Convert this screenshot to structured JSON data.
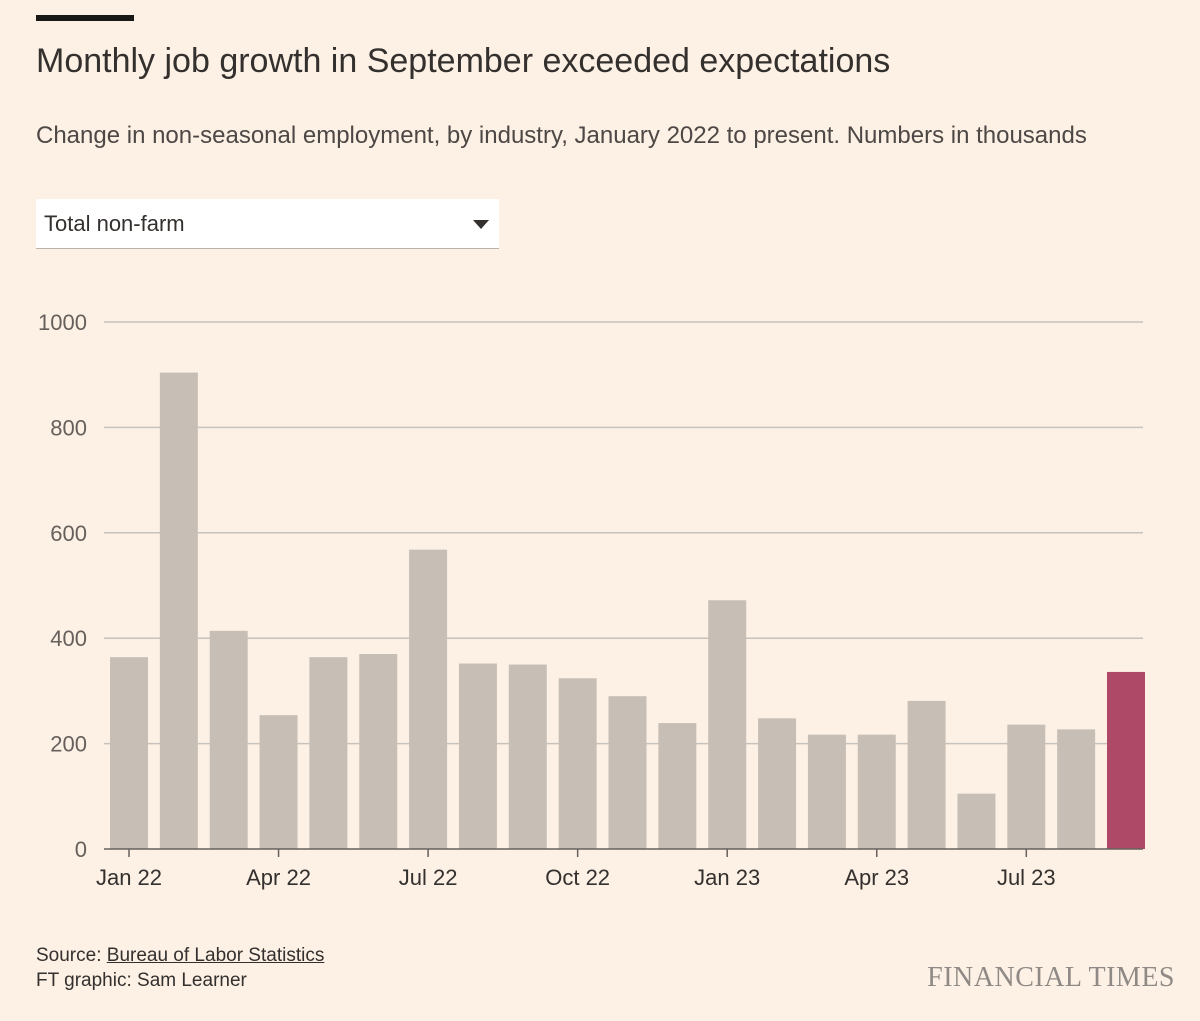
{
  "header": {
    "title": "Monthly job growth in September exceeded expectations",
    "subtitle": "Change in non-seasonal employment, by industry, January 2022 to present. Numbers in thousands"
  },
  "dropdown": {
    "selected": "Total non-farm",
    "icon": "caret-down-icon"
  },
  "footer": {
    "source_prefix": "Source: ",
    "source_link": "Bureau of Labor Statistics",
    "credit": "FT graphic: Sam Learner",
    "logo": "FINANCIAL TIMES"
  },
  "colors": {
    "background": "#fdf1e5",
    "bar": "#c7bfb6",
    "highlight": "#ae4968",
    "grid": "#c8c2bc"
  },
  "chart_data": {
    "type": "bar",
    "categories": [
      "Jan 22",
      "Feb 22",
      "Mar 22",
      "Apr 22",
      "May 22",
      "Jun 22",
      "Jul 22",
      "Aug 22",
      "Sep 22",
      "Oct 22",
      "Nov 22",
      "Dec 22",
      "Jan 23",
      "Feb 23",
      "Mar 23",
      "Apr 23",
      "May 23",
      "Jun 23",
      "Jul 23",
      "Aug 23",
      "Sep 23"
    ],
    "values": [
      364,
      904,
      414,
      254,
      364,
      370,
      568,
      352,
      350,
      324,
      290,
      239,
      472,
      248,
      217,
      217,
      281,
      105,
      236,
      227,
      336
    ],
    "highlight_index": 20,
    "x_tick_labels": [
      "Jan 22",
      "Apr 22",
      "Jul 22",
      "Oct 22",
      "Jan 23",
      "Apr 23",
      "Jul 23"
    ],
    "x_tick_indices": [
      0,
      3,
      6,
      9,
      12,
      15,
      18
    ],
    "yticks": [
      0,
      200,
      400,
      600,
      800,
      1000
    ],
    "ylim": [
      0,
      1000
    ],
    "grid": true
  }
}
